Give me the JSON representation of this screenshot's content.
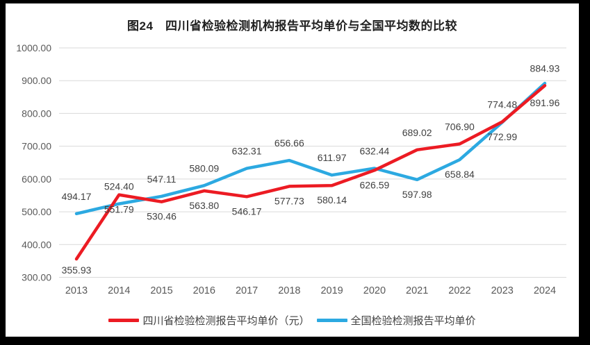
{
  "page": {
    "title": "图24　四川省检验检测机构报告平均单价与全国平均数的比较"
  },
  "chart_data": {
    "type": "line",
    "title": "图24　四川省检验检测机构报告平均单价与全国平均数的比较",
    "categories": [
      "2013",
      "2014",
      "2015",
      "2016",
      "2017",
      "2018",
      "2019",
      "2020",
      "2021",
      "2022",
      "2023",
      "2024"
    ],
    "series": [
      {
        "name": "四川省检验检测报告平均单价（元）",
        "color": "#EC1B23",
        "values": [
          355.93,
          551.79,
          530.46,
          563.8,
          546.17,
          577.73,
          580.14,
          626.59,
          689.02,
          706.9,
          774.48,
          884.93
        ],
        "label_sides": [
          "below",
          "below",
          "below",
          "below",
          "below",
          "below",
          "below",
          "below",
          "above",
          "above",
          "above",
          "above"
        ]
      },
      {
        "name": "全国检验检测报告平均单价",
        "color": "#2CA9E1",
        "values": [
          494.17,
          524.4,
          547.11,
          580.09,
          632.31,
          656.66,
          611.97,
          632.44,
          597.98,
          658.84,
          772.99,
          891.96
        ],
        "label_sides": [
          "above",
          "above",
          "above",
          "above",
          "above",
          "above",
          "above",
          "above",
          "below",
          "below",
          "below",
          "below"
        ]
      }
    ],
    "ylim": [
      300,
      1000
    ],
    "ytick_step": 100,
    "ytick_labels": [
      "300.00",
      "400.00",
      "500.00",
      "600.00",
      "700.00",
      "800.00",
      "900.00",
      "1000.00"
    ],
    "xlabel": "",
    "ylabel": "",
    "grid": true,
    "legend_position": "bottom",
    "colors": {
      "gridline": "#d9d9d9",
      "axis_text": "#595959",
      "data_label_text": "#404040",
      "page_background": "#ffffff",
      "frame_background": "#000000"
    }
  }
}
